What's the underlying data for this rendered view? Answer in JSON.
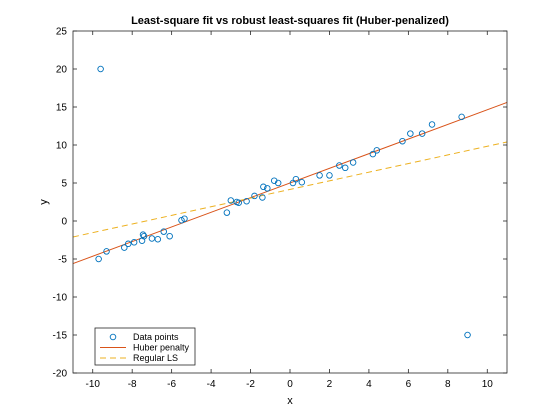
{
  "chart_data": {
    "type": "scatter",
    "title": "Least-square fit vs robust least-squares fit (Huber-penalized)",
    "xlabel": "x",
    "ylabel": "y",
    "xlim": [
      -11,
      11
    ],
    "ylim": [
      -20,
      25
    ],
    "xticks": [
      -10,
      -8,
      -6,
      -4,
      -2,
      0,
      2,
      4,
      6,
      8,
      10
    ],
    "yticks": [
      -20,
      -15,
      -10,
      -5,
      0,
      5,
      10,
      15,
      20,
      25
    ],
    "grid": false,
    "legend_position": "bottom-left",
    "series": [
      {
        "name": "Data points",
        "kind": "markers",
        "color": "#0072BD",
        "points": [
          [
            -9.6,
            20.0
          ],
          [
            -9.7,
            -5.0
          ],
          [
            -9.3,
            -4.0
          ],
          [
            -8.4,
            -3.5
          ],
          [
            -8.2,
            -3.0
          ],
          [
            -7.9,
            -2.8
          ],
          [
            -7.5,
            -2.6
          ],
          [
            -7.4,
            -2.0
          ],
          [
            -7.45,
            -1.8
          ],
          [
            -7.0,
            -2.3
          ],
          [
            -6.7,
            -2.4
          ],
          [
            -6.4,
            -1.4
          ],
          [
            -6.1,
            -2.0
          ],
          [
            -5.5,
            0.1
          ],
          [
            -5.35,
            0.3
          ],
          [
            -3.2,
            1.1
          ],
          [
            -3.0,
            2.7
          ],
          [
            -2.7,
            2.5
          ],
          [
            -2.6,
            2.4
          ],
          [
            -2.2,
            2.6
          ],
          [
            -1.8,
            3.3
          ],
          [
            -1.4,
            3.1
          ],
          [
            -1.35,
            4.5
          ],
          [
            -1.15,
            4.3
          ],
          [
            -0.8,
            5.3
          ],
          [
            -0.6,
            5.0
          ],
          [
            0.15,
            5.0
          ],
          [
            0.3,
            5.5
          ],
          [
            0.6,
            5.1
          ],
          [
            1.5,
            6.0
          ],
          [
            2.0,
            6.0
          ],
          [
            2.5,
            7.3
          ],
          [
            2.8,
            7.0
          ],
          [
            3.2,
            7.7
          ],
          [
            4.2,
            8.8
          ],
          [
            4.4,
            9.3
          ],
          [
            5.7,
            10.5
          ],
          [
            6.1,
            11.5
          ],
          [
            6.7,
            11.5
          ],
          [
            7.2,
            12.7
          ],
          [
            8.7,
            13.7
          ],
          [
            9.0,
            -15.0
          ]
        ]
      },
      {
        "name": "Huber penalty",
        "kind": "line",
        "color": "#D95319",
        "dash": "solid",
        "points": [
          [
            -11,
            -5.6
          ],
          [
            11,
            15.6
          ]
        ]
      },
      {
        "name": "Regular LS",
        "kind": "line",
        "color": "#EDB120",
        "dash": "dashed",
        "points": [
          [
            -11,
            -2.1
          ],
          [
            11,
            10.4
          ]
        ]
      }
    ]
  }
}
